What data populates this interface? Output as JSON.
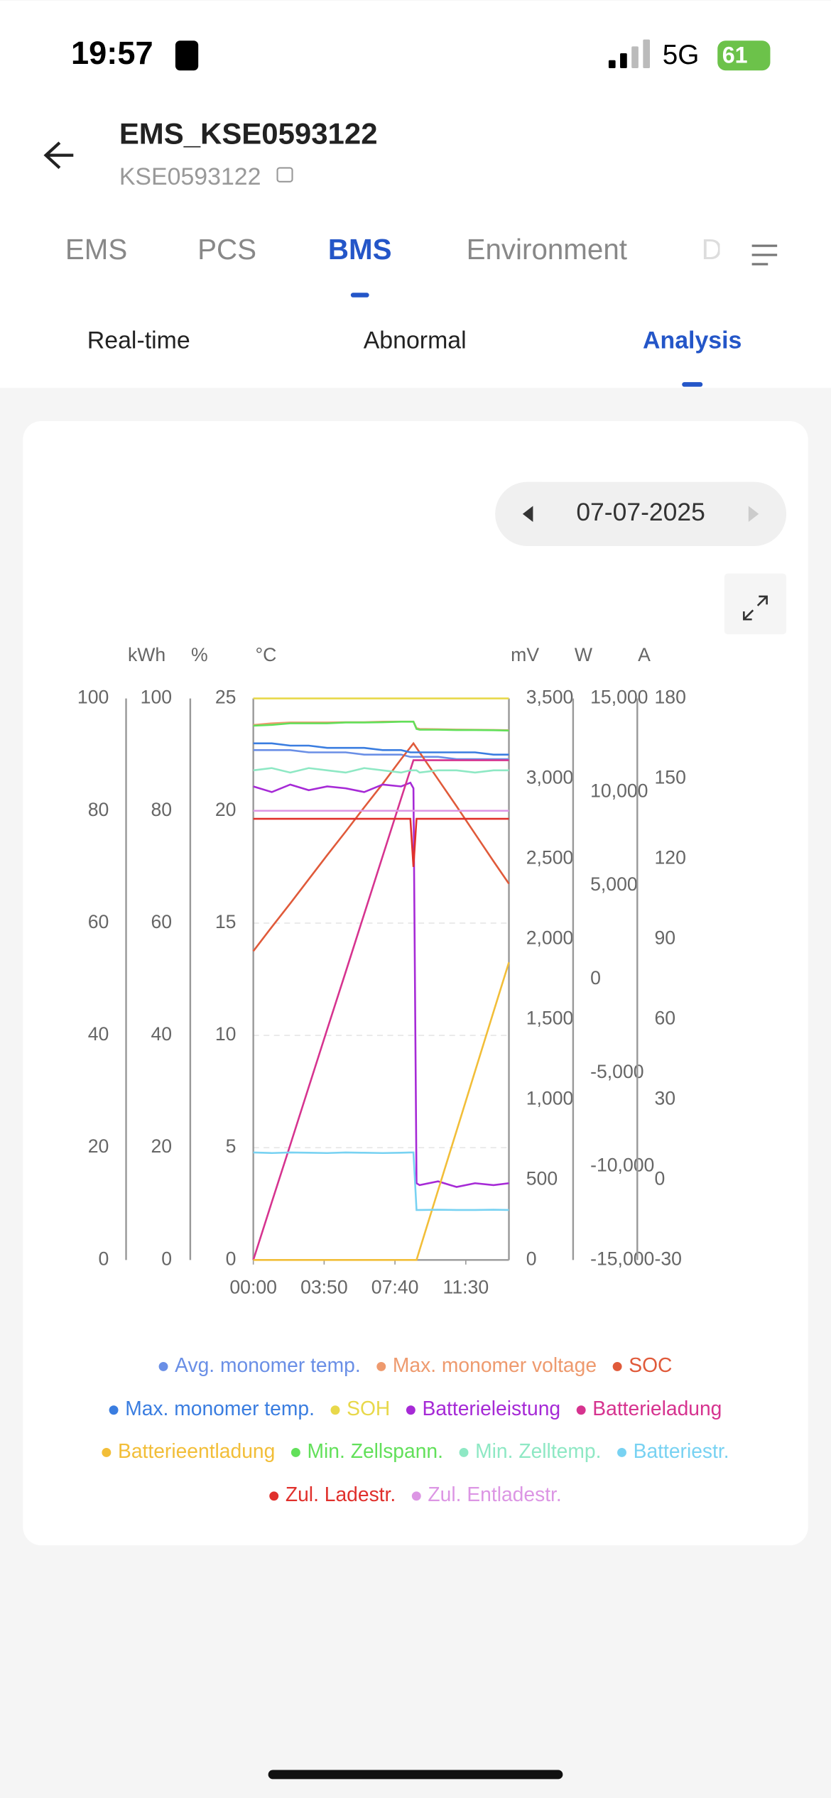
{
  "status_bar": {
    "time": "19:57",
    "network": "5G",
    "battery": "61"
  },
  "header": {
    "title": "EMS_KSE0593122",
    "subtitle": "KSE0593122"
  },
  "tabs": [
    "EMS",
    "PCS",
    "BMS",
    "Environment",
    "D"
  ],
  "sub_tabs": [
    "Real-time",
    "Abnormal",
    "Analysis"
  ],
  "date": "07-07-2025",
  "chart_data": {
    "type": "line",
    "x": [
      "00:00",
      "01:00",
      "02:00",
      "03:00",
      "04:00",
      "05:00",
      "06:00",
      "07:00",
      "08:00",
      "08:30",
      "08:40",
      "08:50",
      "09:00",
      "10:00",
      "11:00",
      "12:00",
      "13:00",
      "13:50"
    ],
    "xlim": [
      "00:00",
      "13:50"
    ],
    "xticks": [
      "00:00",
      "03:50",
      "07:40",
      "11:30"
    ],
    "grid": true,
    "axes": [
      {
        "label": "kWh",
        "ylim": [
          0,
          100
        ],
        "yticks": [
          0,
          20,
          40,
          60,
          80,
          100
        ]
      },
      {
        "label": "%",
        "ylim": [
          0,
          100
        ],
        "yticks": [
          0,
          20,
          40,
          60,
          80,
          100
        ]
      },
      {
        "label": "°C",
        "ylim": [
          0,
          25
        ],
        "yticks": [
          0,
          5,
          10,
          15,
          20,
          25
        ]
      },
      {
        "label": "mV",
        "ylim": [
          0,
          3500
        ],
        "yticks": [
          0,
          500,
          {
            "value": 1000,
            "label": "1,000"
          },
          {
            "value": 1500,
            "label": "1,500"
          },
          {
            "value": 2000,
            "label": "2,000"
          },
          {
            "value": 2500,
            "label": "2,500"
          },
          {
            "value": 3000,
            "label": "3,000"
          },
          {
            "value": 3500,
            "label": "3,500"
          }
        ]
      },
      {
        "label": "W",
        "ylim": [
          -15000,
          15000
        ],
        "yticks": [
          {
            "value": -15000,
            "label": "-15,000"
          },
          {
            "value": -10000,
            "label": "-10,000"
          },
          {
            "value": -5000,
            "label": "-5,000"
          },
          0,
          {
            "value": 5000,
            "label": "5,000"
          },
          {
            "value": 10000,
            "label": "10,000"
          },
          {
            "value": 15000,
            "label": "15,000"
          }
        ]
      },
      {
        "label": "A",
        "ylim": [
          -30,
          180
        ],
        "yticks": [
          -30,
          0,
          30,
          60,
          90,
          120,
          150,
          180
        ]
      }
    ],
    "series": [
      {
        "name": "Avg. monomer temp.",
        "color": "#6a8fe6",
        "axis": 2,
        "values": [
          22.7,
          22.7,
          22.7,
          22.6,
          22.6,
          22.6,
          22.5,
          22.5,
          22.5,
          22.4,
          22.4,
          22.4,
          22.4,
          22.4,
          22.3,
          22.3,
          22.3,
          22.3
        ]
      },
      {
        "name": "Max. monomer voltage",
        "color": "#ee9a6e",
        "axis": 3,
        "values": [
          3335,
          3345,
          3350,
          3350,
          3350,
          3352,
          3352,
          3355,
          3356,
          3356,
          3356,
          3315,
          3310,
          3308,
          3306,
          3305,
          3304,
          3302
        ]
      },
      {
        "name": "SOC",
        "color": "#e05a3a",
        "axis": 1,
        "values": [
          55,
          59.3,
          63.5,
          67.8,
          72.1,
          76.3,
          80.6,
          84.8,
          89.2,
          91.3,
          92,
          91.2,
          90.4,
          85.6,
          80.8,
          75.9,
          71,
          67
        ]
      },
      {
        "name": "Max. monomer temp.",
        "color": "#3a7de0",
        "axis": 2,
        "values": [
          23.0,
          23.0,
          22.9,
          22.9,
          22.8,
          22.8,
          22.8,
          22.7,
          22.7,
          22.6,
          22.6,
          22.6,
          22.6,
          22.6,
          22.6,
          22.6,
          22.5,
          22.5
        ]
      },
      {
        "name": "SOH",
        "color": "#e8d84a",
        "axis": 1,
        "values": [
          100,
          100,
          100,
          100,
          100,
          100,
          100,
          100,
          100,
          100,
          100,
          100,
          100,
          100,
          100,
          100,
          100,
          100
        ]
      },
      {
        "name": "Batterieleistung",
        "color": "#a62ad6",
        "axis": 4,
        "values": [
          10300,
          10000,
          10400,
          10100,
          10300,
          10200,
          10000,
          10400,
          10300,
          10500,
          10200,
          -10900,
          -11000,
          -10800,
          -11100,
          -10900,
          -11000,
          -10900
        ]
      },
      {
        "name": "Batterieladung",
        "color": "#d6338f",
        "axis": 0,
        "values": [
          0,
          10.3,
          20.5,
          30.8,
          41.1,
          51.3,
          61.6,
          71.9,
          82.2,
          87.3,
          89,
          89,
          89,
          89,
          89,
          89,
          89,
          89
        ]
      },
      {
        "name": "Batterieentladung",
        "color": "#f2be38",
        "axis": 0,
        "values": [
          0,
          0,
          0,
          0,
          0,
          0,
          0,
          0,
          0,
          0,
          0,
          0,
          1.8,
          12.4,
          23,
          33.6,
          44.2,
          53
        ]
      },
      {
        "name": "Min. Zellspann.",
        "color": "#62e05a",
        "axis": 3,
        "values": [
          3330,
          3335,
          3345,
          3345,
          3345,
          3350,
          3350,
          3352,
          3355,
          3355,
          3355,
          3310,
          3305,
          3305,
          3303,
          3303,
          3302,
          3300
        ]
      },
      {
        "name": "Min. Zelltemp.",
        "color": "#8ee8c4",
        "axis": 2,
        "values": [
          21.8,
          21.9,
          21.7,
          21.9,
          21.8,
          21.7,
          21.9,
          21.8,
          21.7,
          21.8,
          21.8,
          21.8,
          21.7,
          21.8,
          21.8,
          21.7,
          21.8,
          21.8
        ]
      },
      {
        "name": "Batteriestr.",
        "color": "#78d2f2",
        "axis": 5,
        "values": [
          10.2,
          10,
          10.2,
          10.1,
          10,
          10.2,
          10.1,
          10,
          10.1,
          10.2,
          10.2,
          -11.3,
          -11.3,
          -11.2,
          -11.3,
          -11.3,
          -11.2,
          -11.3
        ]
      },
      {
        "name": "Zul. Ladestr.",
        "color": "#e0302c",
        "axis": 5,
        "values": [
          135,
          135,
          135,
          135,
          135,
          135,
          135,
          135,
          135,
          135,
          117,
          135,
          135,
          135,
          135,
          135,
          135,
          135
        ]
      },
      {
        "name": "Zul. Entladestr.",
        "color": "#dc96e4",
        "axis": 5,
        "values": [
          138,
          138,
          138,
          138,
          138,
          138,
          138,
          138,
          138,
          138,
          138,
          138,
          138,
          138,
          138,
          138,
          138,
          138
        ]
      }
    ]
  }
}
